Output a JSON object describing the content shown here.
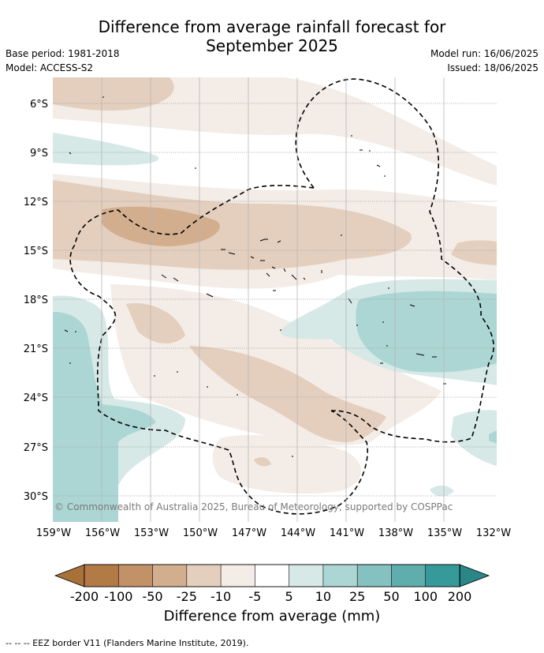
{
  "title": {
    "line1": "Difference from average rainfall forecast for",
    "line2": "September 2025"
  },
  "meta_left": {
    "base_period": "Base period: 1981-2018",
    "model": "Model: ACCESS-S2"
  },
  "meta_right": {
    "model_run": "Model run: 16/06/2025",
    "issued": "Issued: 18/06/2025"
  },
  "map": {
    "lat_labels": [
      "6°S",
      "9°S",
      "12°S",
      "15°S",
      "18°S",
      "21°S",
      "24°S",
      "27°S",
      "30°S"
    ],
    "lon_labels": [
      "159°W",
      "156°W",
      "153°W",
      "150°W",
      "147°W",
      "144°W",
      "141°W",
      "138°W",
      "135°W",
      "132°W"
    ],
    "copyright": "© Commonwealth of Australia 2025, Bureau of Meteorology, supported by COSPPac"
  },
  "colorbar": {
    "ticks": [
      "-200",
      "-100",
      "-50",
      "-25",
      "-10",
      "-5",
      "5",
      "10",
      "25",
      "50",
      "100",
      "200"
    ],
    "colors": [
      "#a8713a",
      "#b27a45",
      "#c39167",
      "#d2ae8e",
      "#e4cfbe",
      "#f4ece6",
      "#ffffff",
      "#d6e9e7",
      "#acd6d4",
      "#85c1c0",
      "#5fadac",
      "#36999a",
      "#2b8688"
    ],
    "title": "Difference from average (mm)"
  },
  "legend": {
    "text": "-- -- -- EEZ border V11 (Flanders Marine Institute, 2019)."
  }
}
